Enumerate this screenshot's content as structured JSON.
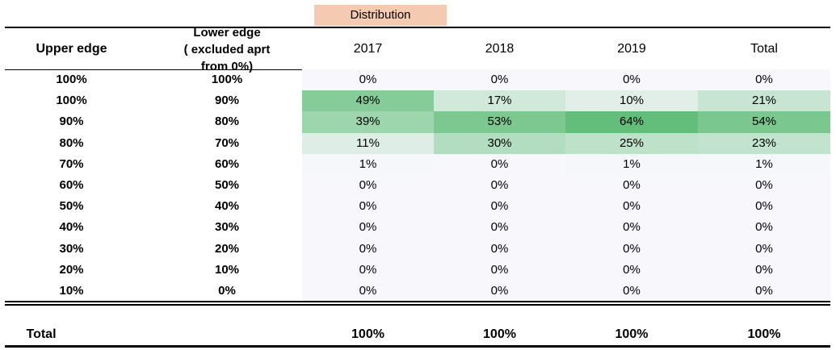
{
  "distribution_label": "Distribution",
  "headers": {
    "upper_edge": "Upper edge",
    "lower_edge_line1": "Lower edge",
    "lower_edge_line2": "( excluded aprt from 0%)",
    "columns": [
      "2017",
      "2018",
      "2019",
      "Total"
    ]
  },
  "rows": [
    {
      "upper": "100%",
      "lower": "100%",
      "values": [
        "0%",
        "0%",
        "0%",
        "0%"
      ],
      "shades": [
        0,
        0,
        0,
        0
      ]
    },
    {
      "upper": "100%",
      "lower": "90%",
      "values": [
        "49%",
        "17%",
        "10%",
        "21%"
      ],
      "shades": [
        0.49,
        0.17,
        0.1,
        0.21
      ]
    },
    {
      "upper": "90%",
      "lower": "80%",
      "values": [
        "39%",
        "53%",
        "64%",
        "54%"
      ],
      "shades": [
        0.39,
        0.53,
        0.64,
        0.54
      ]
    },
    {
      "upper": "80%",
      "lower": "70%",
      "values": [
        "11%",
        "30%",
        "25%",
        "23%"
      ],
      "shades": [
        0.11,
        0.3,
        0.25,
        0.23
      ]
    },
    {
      "upper": "70%",
      "lower": "60%",
      "values": [
        "1%",
        "0%",
        "1%",
        "1%"
      ],
      "shades": [
        0.01,
        0,
        0.01,
        0.01
      ]
    },
    {
      "upper": "60%",
      "lower": "50%",
      "values": [
        "0%",
        "0%",
        "0%",
        "0%"
      ],
      "shades": [
        0,
        0,
        0,
        0
      ]
    },
    {
      "upper": "50%",
      "lower": "40%",
      "values": [
        "0%",
        "0%",
        "0%",
        "0%"
      ],
      "shades": [
        0,
        0,
        0,
        0
      ]
    },
    {
      "upper": "40%",
      "lower": "30%",
      "values": [
        "0%",
        "0%",
        "0%",
        "0%"
      ],
      "shades": [
        0,
        0,
        0,
        0
      ]
    },
    {
      "upper": "30%",
      "lower": "20%",
      "values": [
        "0%",
        "0%",
        "0%",
        "0%"
      ],
      "shades": [
        0,
        0,
        0,
        0
      ]
    },
    {
      "upper": "20%",
      "lower": "10%",
      "values": [
        "0%",
        "0%",
        "0%",
        "0%"
      ],
      "shades": [
        0,
        0,
        0,
        0
      ]
    },
    {
      "upper": "10%",
      "lower": "0%",
      "values": [
        "0%",
        "0%",
        "0%",
        "0%"
      ],
      "shades": [
        0,
        0,
        0,
        0
      ]
    }
  ],
  "total": {
    "label": "Total",
    "values": [
      "100%",
      "100%",
      "100%",
      "100%"
    ]
  },
  "colors": {
    "heat_low": "#f8f8fc",
    "heat_high": "#63be7b",
    "distribution_bg": "#f4cbb0"
  }
}
